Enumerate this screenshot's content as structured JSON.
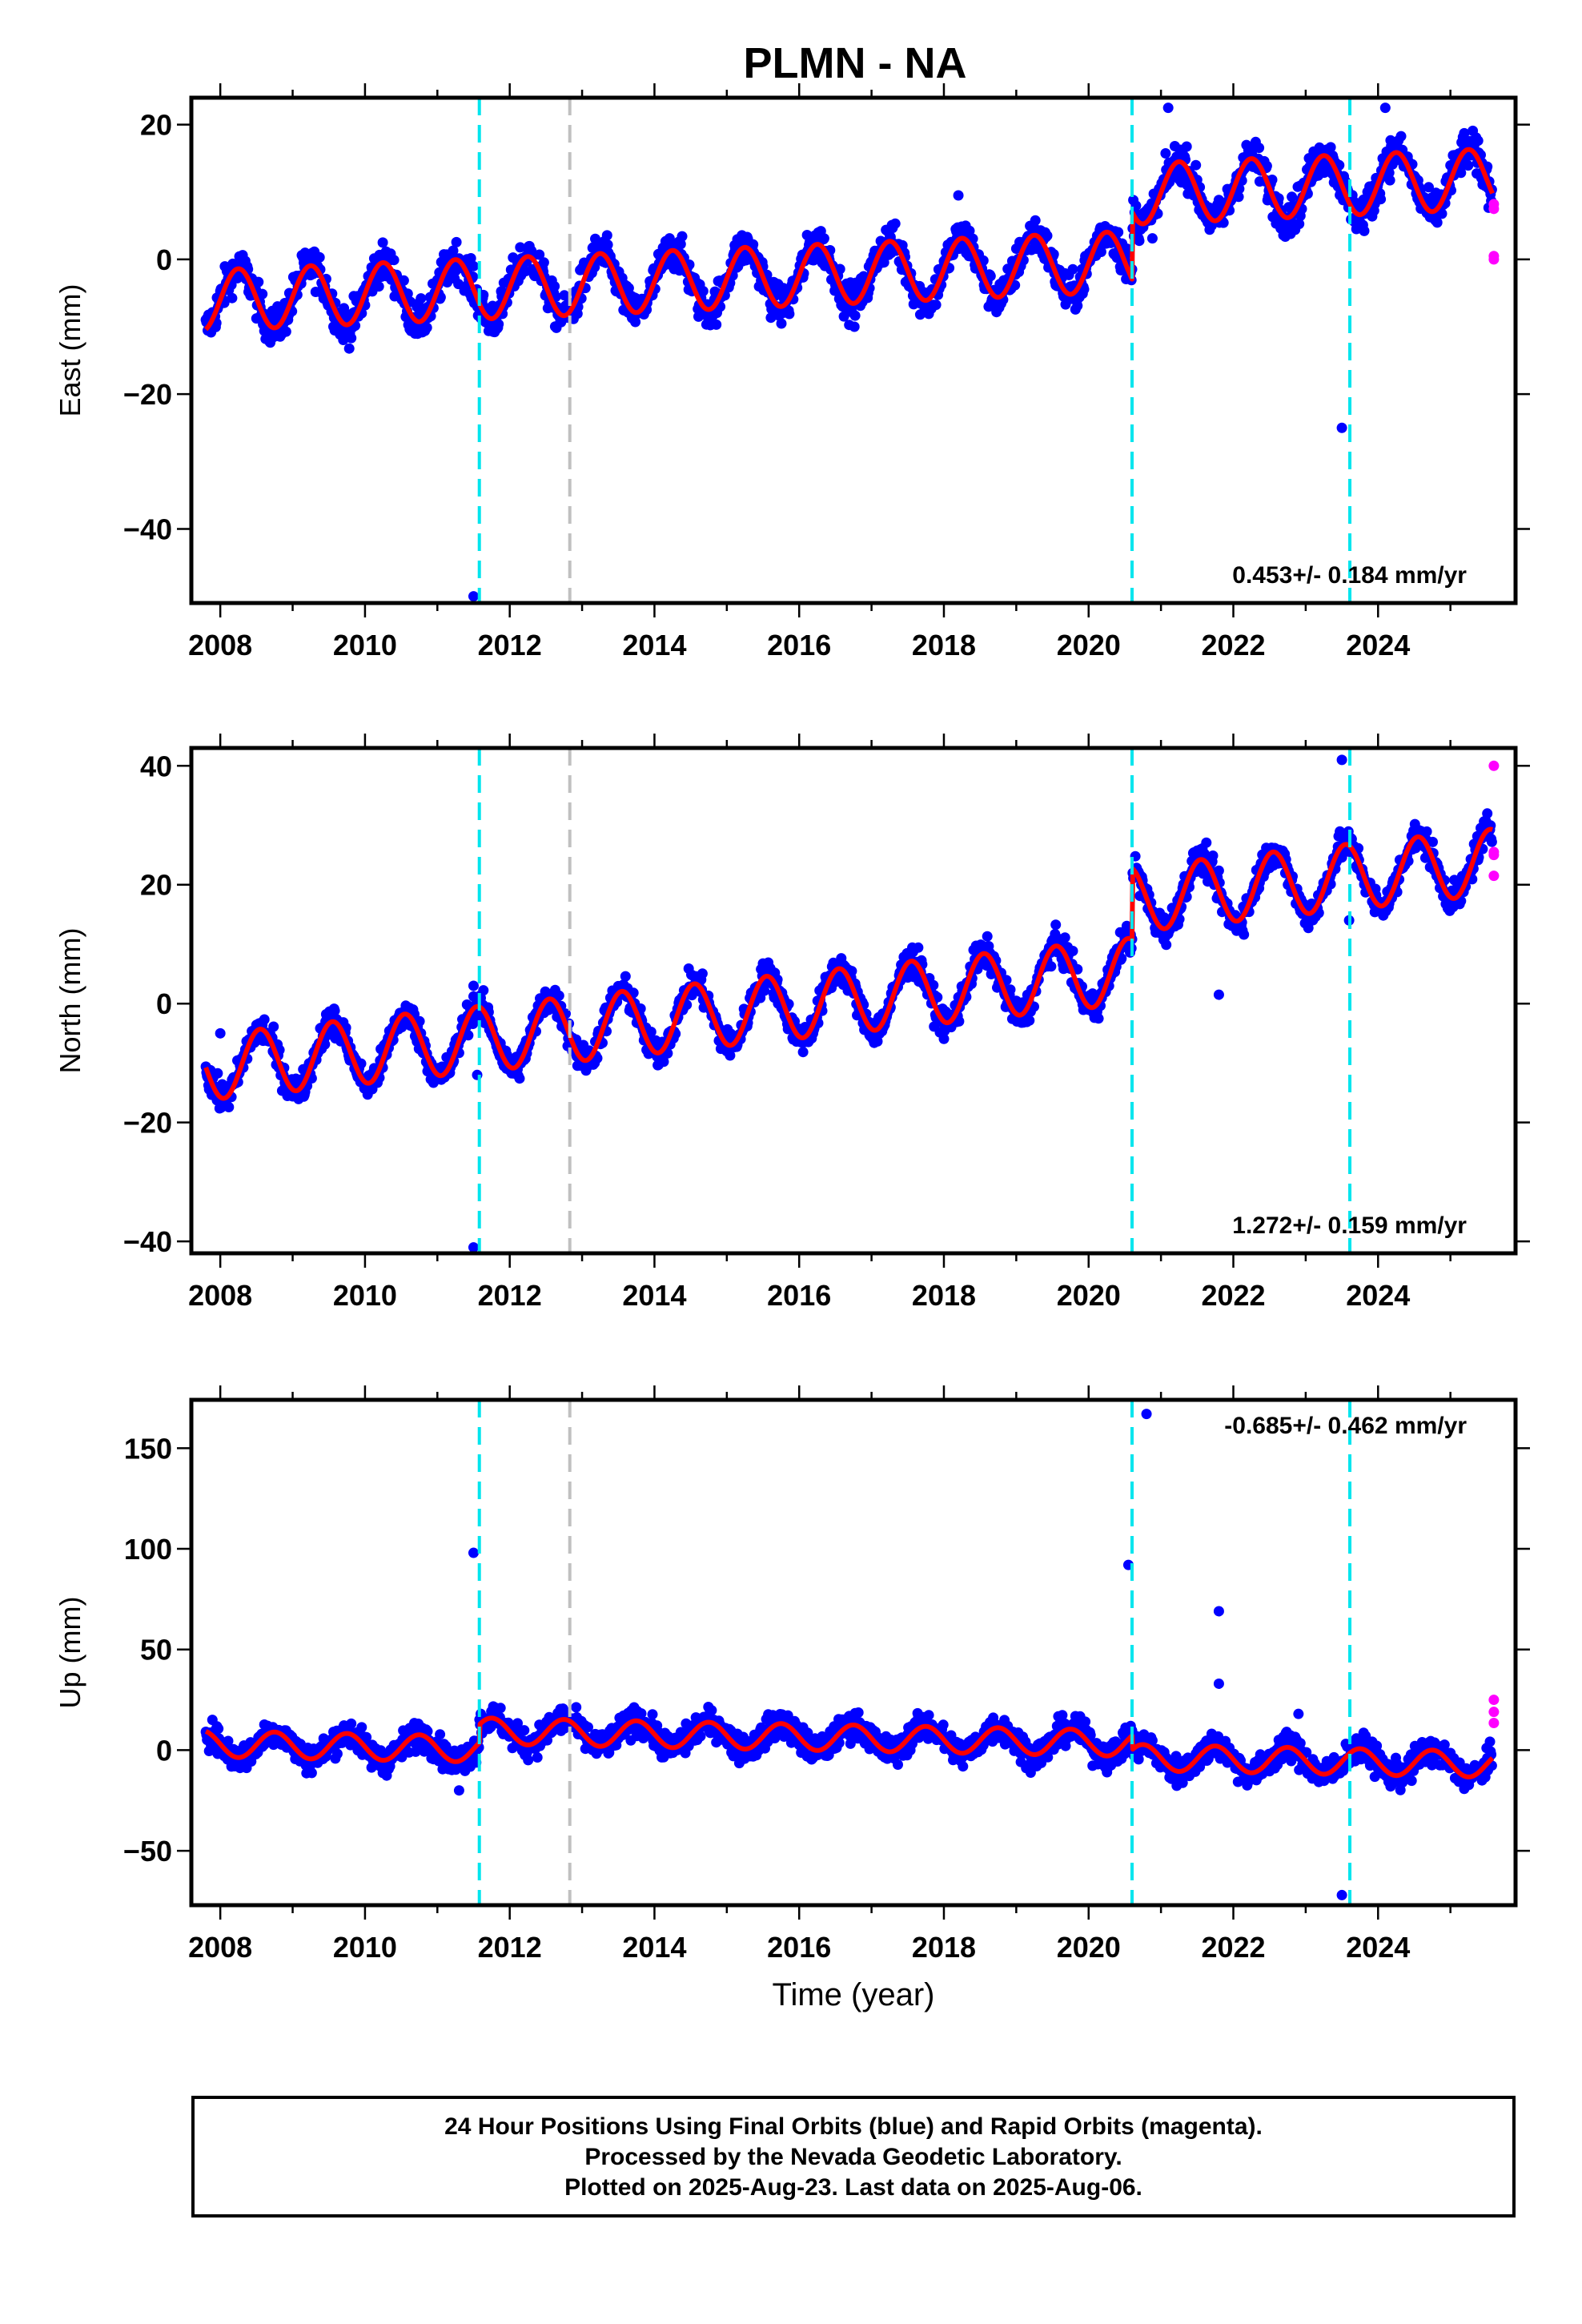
{
  "title": "PLMN - NA",
  "xlabel": "Time (year)",
  "colors": {
    "final_points": "#0000ff",
    "rapid_points": "#ff00ff",
    "model": "#ff0000",
    "break_equipment": "#00e5ee",
    "break_other": "#c0c0c0"
  },
  "footer": {
    "line1": "24 Hour Positions Using Final Orbits (blue) and Rapid Orbits (magenta).",
    "line2": "Processed by the Nevada Geodetic Laboratory.",
    "line3": "Plotted on 2025-Aug-23. Last data on 2025-Aug-06."
  },
  "chart_data": [
    {
      "type": "scatter",
      "component": "East",
      "ylabel": "East (mm)",
      "velocity_label": "0.453+/- 0.184 mm/yr",
      "xlim": [
        2007.6,
        2025.9
      ],
      "ylim": [
        -51,
        24
      ],
      "xticks": [
        "2008",
        "2010",
        "2012",
        "2014",
        "2016",
        "2018",
        "2020",
        "2022",
        "2024"
      ],
      "yticks": [
        "20",
        "0",
        "−20",
        "−40"
      ],
      "ytick_values": [
        20,
        0,
        -20,
        -40
      ],
      "grid": false,
      "breaks": [
        {
          "x": 2011.58,
          "kind": "equipment"
        },
        {
          "x": 2012.83,
          "kind": "other"
        },
        {
          "x": 2020.6,
          "kind": "equipment"
        },
        {
          "x": 2023.61,
          "kind": "equipment"
        }
      ],
      "model": {
        "start": 2007.8,
        "end": 2025.58,
        "trend": 0.453,
        "anchor": 2008.0,
        "amplitude": 4.5,
        "phase": 2008.0,
        "segments": [
          {
            "from": 2007.8,
            "offset": -6.0
          },
          {
            "from": 2020.6,
            "offset": 4.0
          }
        ]
      },
      "noise": 2.0,
      "outliers": [
        [
          2011.5,
          -50.0
        ],
        [
          2023.5,
          -25.0
        ],
        [
          2018.2,
          9.5
        ],
        [
          2021.1,
          22.5
        ],
        [
          2024.1,
          22.5
        ],
        [
          2011.4,
          -2.0
        ],
        [
          2011.5,
          -1.0
        ]
      ],
      "rapid_points": [
        [
          2025.6,
          8.2
        ],
        [
          2025.6,
          7.5
        ],
        [
          2025.6,
          0.5
        ],
        [
          2025.6,
          0.0
        ]
      ]
    },
    {
      "type": "scatter",
      "component": "North",
      "ylabel": "North (mm)",
      "velocity_label": "1.272+/- 0.159 mm/yr",
      "xlim": [
        2007.6,
        2025.9
      ],
      "ylim": [
        -42,
        43
      ],
      "xticks": [
        "2008",
        "2010",
        "2012",
        "2014",
        "2016",
        "2018",
        "2020",
        "2022",
        "2024"
      ],
      "yticks": [
        "40",
        "20",
        "0",
        "−20",
        "−40"
      ],
      "ytick_values": [
        40,
        20,
        0,
        -20,
        -40
      ],
      "grid": false,
      "breaks": [
        {
          "x": 2011.58,
          "kind": "equipment"
        },
        {
          "x": 2012.83,
          "kind": "other"
        },
        {
          "x": 2020.6,
          "kind": "equipment"
        },
        {
          "x": 2023.61,
          "kind": "equipment"
        }
      ],
      "model": {
        "start": 2007.8,
        "end": 2025.58,
        "trend": 1.272,
        "anchor": 2008.0,
        "amplitude": 5.5,
        "phase": 2008.3,
        "segments": [
          {
            "from": 2007.8,
            "offset": -10.5
          },
          {
            "from": 2020.6,
            "offset": 1.5
          }
        ]
      },
      "noise": 1.8,
      "outliers": [
        [
          2011.5,
          -41.0
        ],
        [
          2023.5,
          41.0
        ],
        [
          2021.8,
          1.5
        ],
        [
          2011.55,
          -12.0
        ],
        [
          2011.5,
          3.0
        ],
        [
          2023.6,
          14.0
        ],
        [
          2008.0,
          -5.0
        ]
      ],
      "rapid_points": [
        [
          2025.6,
          40.0
        ],
        [
          2025.6,
          25.0
        ],
        [
          2025.6,
          21.5
        ],
        [
          2025.6,
          25.5
        ]
      ]
    },
    {
      "type": "scatter",
      "component": "Up",
      "ylabel": "Up (mm)",
      "velocity_label": "-0.685+/- 0.462 mm/yr",
      "xlim": [
        2007.6,
        2025.9
      ],
      "ylim": [
        -77,
        174
      ],
      "xticks": [
        "2008",
        "2010",
        "2012",
        "2014",
        "2016",
        "2018",
        "2020",
        "2022",
        "2024"
      ],
      "yticks": [
        "150",
        "100",
        "50",
        "0",
        "−50"
      ],
      "ytick_values": [
        150,
        100,
        50,
        0,
        -50
      ],
      "grid": false,
      "breaks": [
        {
          "x": 2011.58,
          "kind": "equipment"
        },
        {
          "x": 2012.83,
          "kind": "other"
        },
        {
          "x": 2020.6,
          "kind": "equipment"
        },
        {
          "x": 2023.61,
          "kind": "equipment"
        }
      ],
      "model": {
        "start": 2007.8,
        "end": 2025.58,
        "trend": -0.685,
        "anchor": 2008.0,
        "amplitude": 6.5,
        "phase": 2008.5,
        "segments": [
          {
            "from": 2007.8,
            "offset": 3.0
          },
          {
            "from": 2011.58,
            "offset": 12.0
          },
          {
            "from": 2020.6,
            "offset": 5.0
          }
        ]
      },
      "noise": 5.0,
      "outliers": [
        [
          2011.5,
          98.0
        ],
        [
          2020.55,
          92.0
        ],
        [
          2020.8,
          167.0
        ],
        [
          2021.8,
          69.0
        ],
        [
          2021.8,
          33.0
        ],
        [
          2023.5,
          -72.0
        ],
        [
          2022.9,
          18.0
        ],
        [
          2011.3,
          -20.0
        ]
      ],
      "rapid_points": [
        [
          2025.6,
          25.0
        ],
        [
          2025.6,
          19.0
        ],
        [
          2025.6,
          13.5
        ]
      ]
    }
  ]
}
